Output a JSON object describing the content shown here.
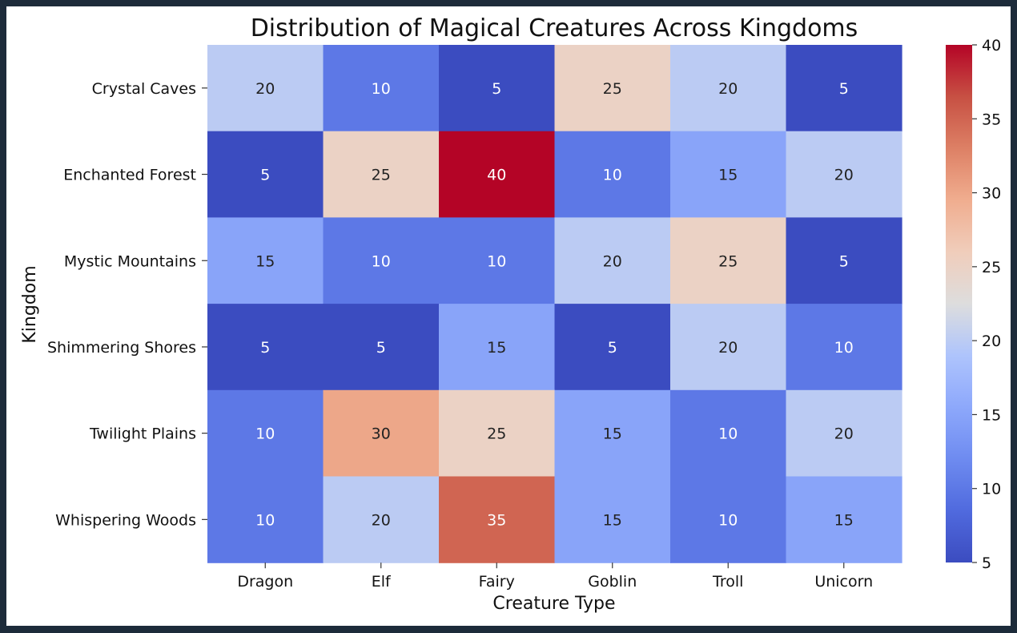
{
  "chart_data": {
    "type": "heatmap",
    "title": "Distribution of Magical Creatures Across Kingdoms",
    "xlabel": "Creature Type",
    "ylabel": "Kingdom",
    "x_categories": [
      "Dragon",
      "Elf",
      "Fairy",
      "Goblin",
      "Troll",
      "Unicorn"
    ],
    "y_categories": [
      "Crystal Caves",
      "Enchanted Forest",
      "Mystic Mountains",
      "Shimmering Shores",
      "Twilight Plains",
      "Whispering Woods"
    ],
    "values": [
      [
        20,
        10,
        5,
        25,
        20,
        5
      ],
      [
        5,
        25,
        40,
        10,
        15,
        20
      ],
      [
        15,
        10,
        10,
        20,
        25,
        5
      ],
      [
        5,
        5,
        15,
        5,
        20,
        10
      ],
      [
        10,
        30,
        25,
        15,
        10,
        20
      ],
      [
        10,
        20,
        35,
        15,
        10,
        15
      ]
    ],
    "colormap": "coolwarm",
    "colorbar": {
      "min": 5,
      "max": 40,
      "ticks": [
        5,
        10,
        15,
        20,
        25,
        30,
        35,
        40
      ]
    }
  }
}
